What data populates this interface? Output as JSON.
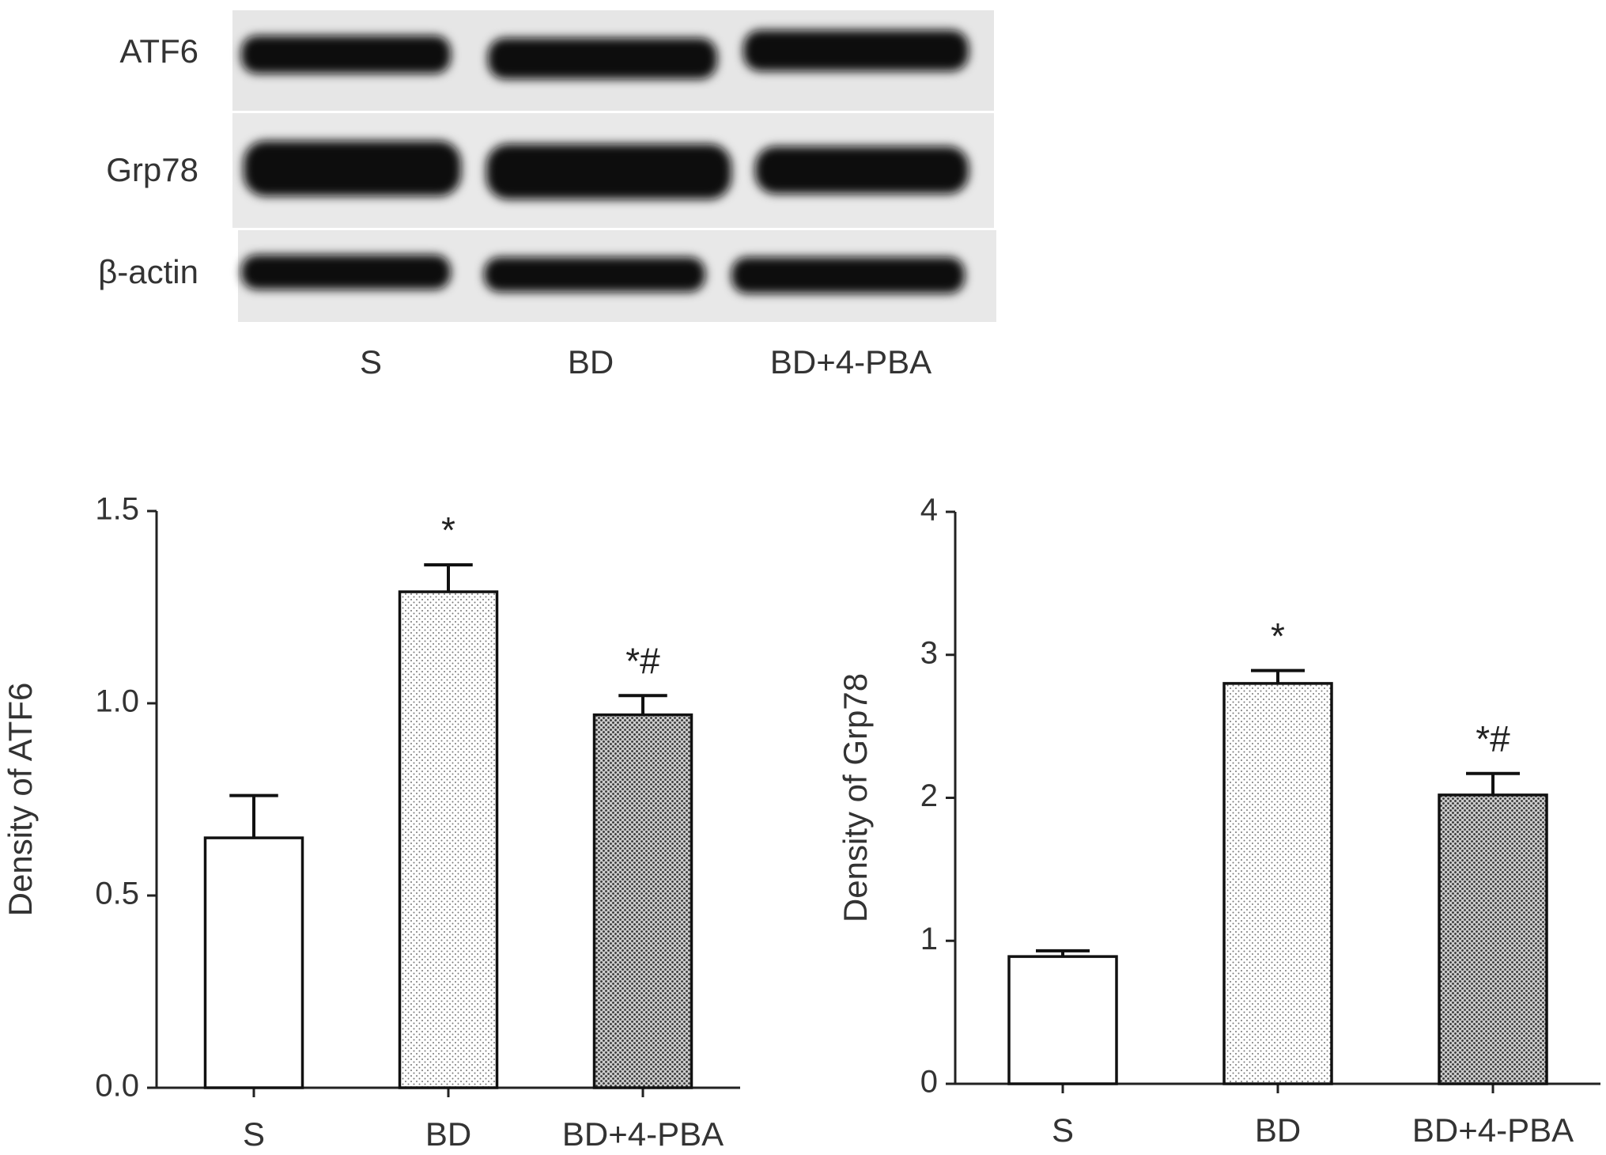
{
  "blot": {
    "rows": [
      "ATF6",
      "Grp78",
      "β-actin"
    ],
    "lanes": [
      "S",
      "BD",
      "BD+4-PBA"
    ]
  },
  "chart_data": [
    {
      "type": "bar",
      "ylabel": "Density of ATF6",
      "categories": [
        "S",
        "BD",
        "BD+4-PBA"
      ],
      "values": [
        0.65,
        1.29,
        0.97
      ],
      "errors": [
        0.11,
        0.07,
        0.05
      ],
      "annotations": [
        null,
        "*",
        "*#"
      ],
      "ylim": [
        0,
        1.5
      ],
      "yticks": [
        {
          "value": 0,
          "label": "0.0"
        },
        0.5,
        {
          "value": 1,
          "label": "1.0"
        },
        1.5
      ]
    },
    {
      "type": "bar",
      "ylabel": "Density of Grp78",
      "categories": [
        "S",
        "BD",
        "BD+4-PBA"
      ],
      "values": [
        0.89,
        2.8,
        2.02
      ],
      "errors": [
        0.04,
        0.09,
        0.15
      ],
      "annotations": [
        null,
        "*",
        "*#"
      ],
      "ylim": [
        0,
        4
      ],
      "yticks": [
        0,
        1,
        2,
        3,
        4
      ]
    }
  ]
}
